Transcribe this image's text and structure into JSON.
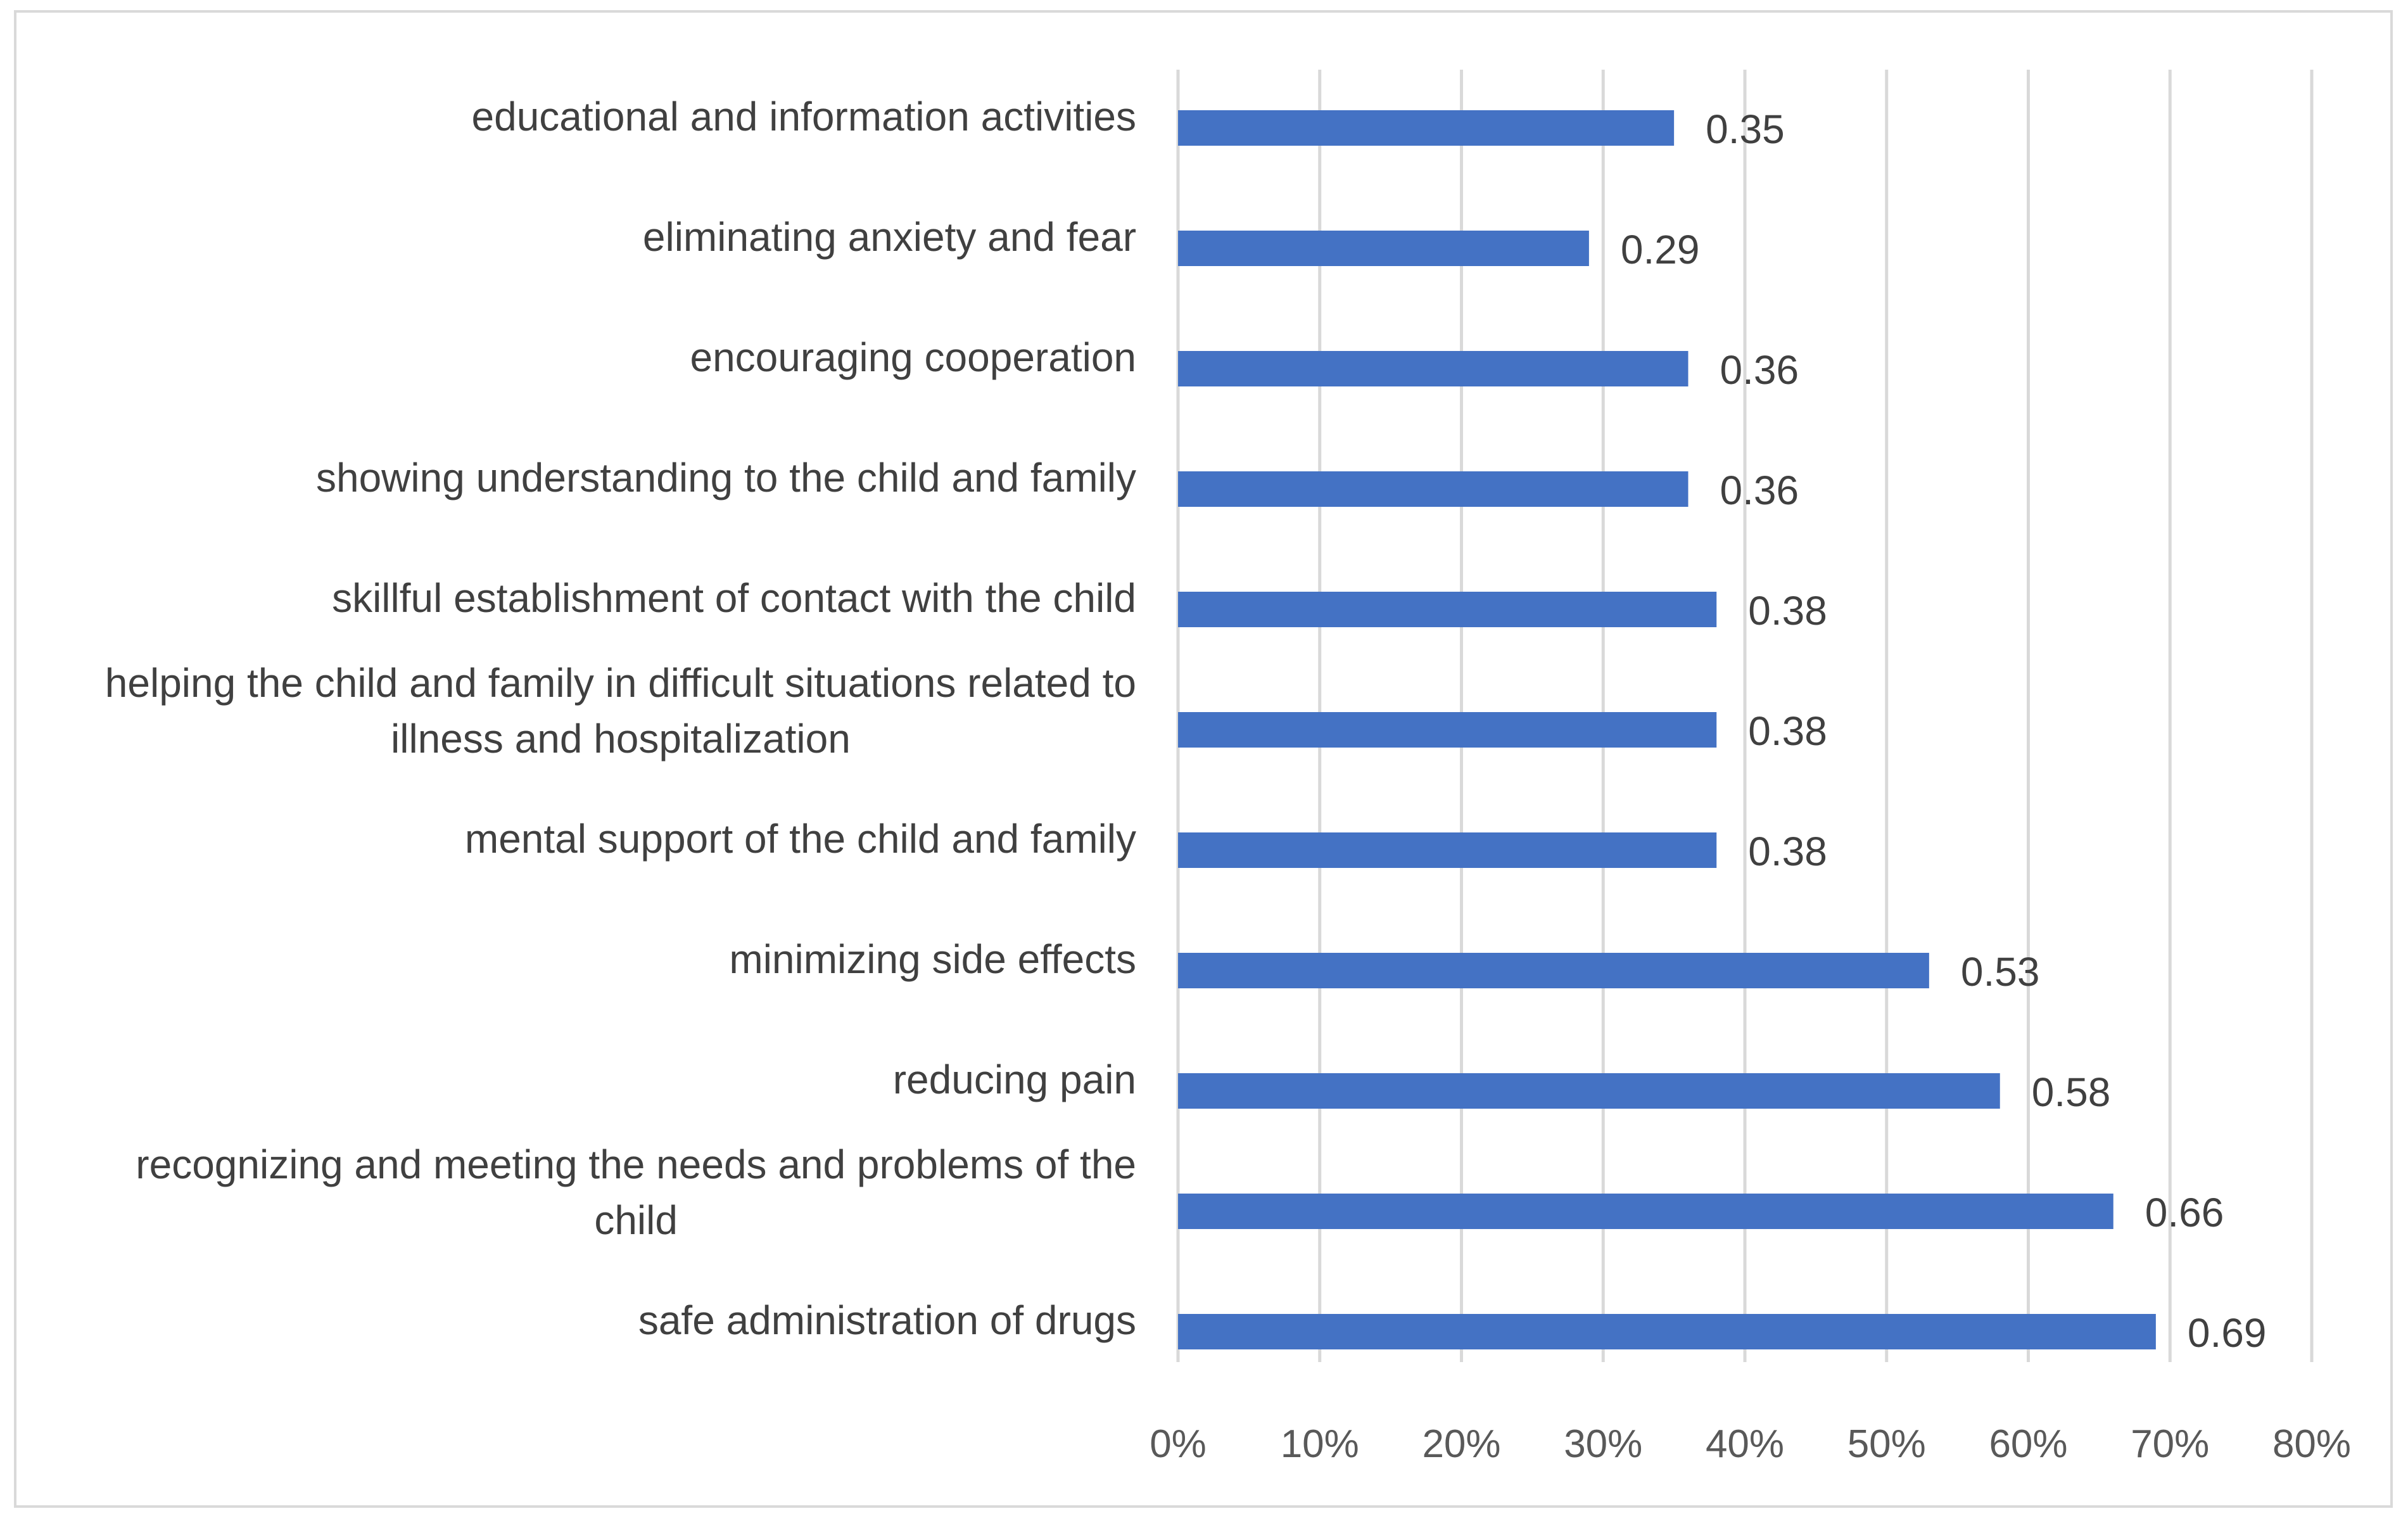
{
  "chart_data": {
    "type": "bar",
    "orientation": "horizontal",
    "categories": [
      "educational and information activities",
      "eliminating anxiety and fear",
      "encouraging cooperation",
      "showing understanding to the child and family",
      "skillful establishment of contact with the child",
      "helping the child and family in difficult situations related to illness and hospitalization",
      "mental support of the child and family",
      "minimizing side effects",
      "reducing pain",
      "recognizing and meeting the needs and problems of the child",
      "safe administration of drugs"
    ],
    "values": [
      0.35,
      0.29,
      0.36,
      0.36,
      0.38,
      0.38,
      0.38,
      0.53,
      0.58,
      0.66,
      0.69
    ],
    "data_labels": [
      "0.35",
      "0.29",
      "0.36",
      "0.36",
      "0.38",
      "0.38",
      "0.38",
      "0.53",
      "0.58",
      "0.66",
      "0.69"
    ],
    "x_ticks": [
      "0%",
      "10%",
      "20%",
      "30%",
      "40%",
      "50%",
      "60%",
      "70%",
      "80%"
    ],
    "xlim": [
      0,
      0.8
    ],
    "title": "",
    "xlabel": "",
    "ylabel": "",
    "grid": "vertical",
    "legend": "none",
    "bar_color": "#4472C4"
  }
}
